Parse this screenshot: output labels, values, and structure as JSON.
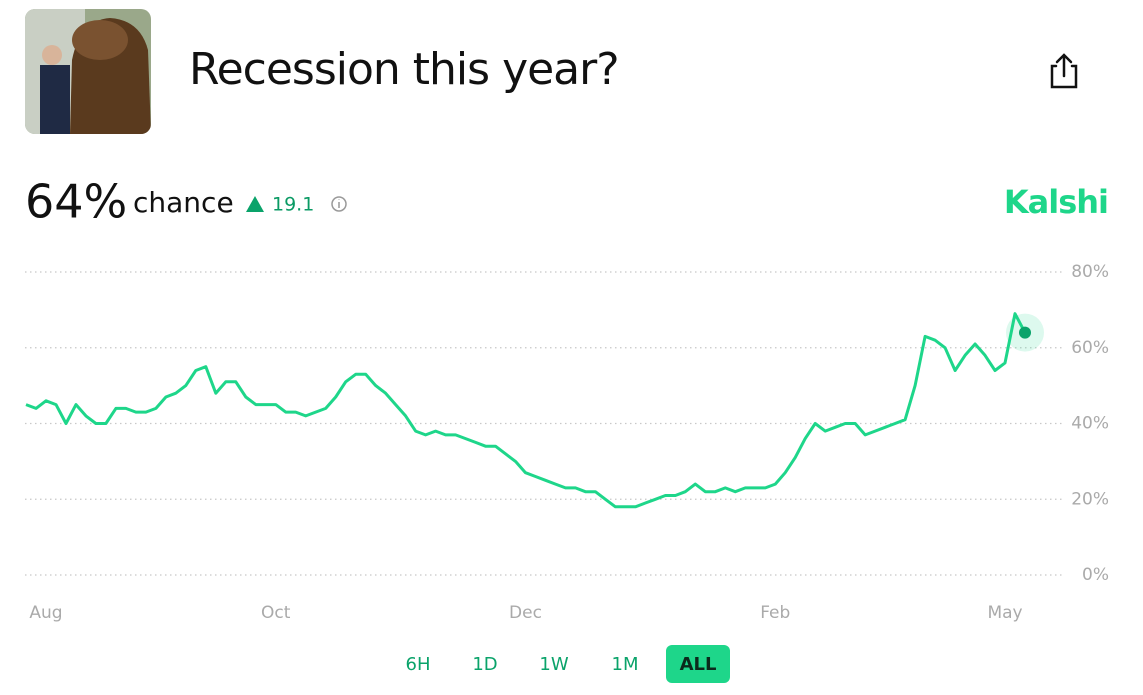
{
  "header": {
    "title": "Recession this year?"
  },
  "summary": {
    "probability": "64%",
    "probability_label": "chance",
    "change": 19.1,
    "source": "Kalshi"
  },
  "chart_data": {
    "type": "line",
    "color": "#1ed68a",
    "categories": [
      null,
      null,
      "Aug",
      null,
      null,
      null,
      null,
      null,
      null,
      null,
      null,
      null,
      null,
      null,
      null,
      null,
      null,
      null,
      null,
      null,
      null,
      null,
      null,
      null,
      null,
      "Oct",
      null,
      null,
      null,
      null,
      null,
      null,
      null,
      null,
      null,
      null,
      null,
      null,
      null,
      null,
      null,
      null,
      null,
      null,
      null,
      null,
      null,
      null,
      null,
      null,
      "Dec",
      null,
      null,
      null,
      null,
      null,
      null,
      null,
      null,
      null,
      null,
      null,
      null,
      null,
      null,
      null,
      null,
      null,
      null,
      null,
      null,
      null,
      null,
      null,
      null,
      "Feb",
      null,
      null,
      null,
      null,
      null,
      null,
      null,
      null,
      null,
      null,
      null,
      null,
      null,
      null,
      null,
      null,
      null,
      null,
      null,
      null,
      null,
      null,
      "May",
      null,
      null
    ],
    "values": [
      45,
      44,
      46,
      45,
      40,
      45,
      42,
      40,
      40,
      44,
      44,
      43,
      43,
      44,
      47,
      48,
      50,
      54,
      55,
      48,
      51,
      51,
      47,
      45,
      45,
      45,
      43,
      43,
      42,
      43,
      44,
      47,
      51,
      53,
      53,
      50,
      48,
      45,
      42,
      38,
      37,
      38,
      37,
      37,
      36,
      35,
      34,
      34,
      32,
      30,
      27,
      26,
      25,
      24,
      23,
      23,
      22,
      22,
      20,
      18,
      18,
      18,
      19,
      20,
      21,
      21,
      22,
      24,
      22,
      22,
      23,
      22,
      23,
      23,
      23,
      24,
      27,
      31,
      36,
      40,
      38,
      39,
      40,
      40,
      37,
      38,
      39,
      40,
      41,
      50,
      63,
      62,
      60,
      54,
      58,
      61,
      58,
      54,
      56,
      69,
      64
    ],
    "ylim": [
      0,
      80
    ],
    "yticks": [
      {
        "value": 0,
        "label": "0%"
      },
      {
        "value": 20,
        "label": "20%"
      },
      {
        "value": 40,
        "label": "40%"
      },
      {
        "value": 60,
        "label": "60%"
      },
      {
        "value": 80,
        "label": "80%"
      }
    ],
    "grid": true
  },
  "ranges": {
    "options": [
      "6H",
      "1D",
      "1W",
      "1M",
      "ALL"
    ],
    "selected": 4
  }
}
